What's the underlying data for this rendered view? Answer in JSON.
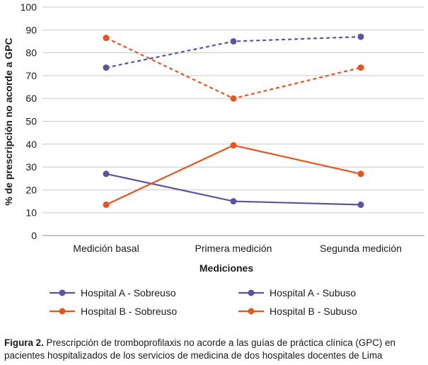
{
  "chart_data": {
    "type": "line",
    "title": "",
    "xlabel": "Mediciones",
    "ylabel": "% de prescripción no acorde a GPC",
    "ylim": [
      0,
      100
    ],
    "yticks": [
      "0",
      "10",
      "20",
      "30",
      "40",
      "50",
      "60",
      "70",
      "80",
      "90",
      "100"
    ],
    "categories": [
      "Medición basal",
      "Primera medición",
      "Segunda medición"
    ],
    "grid": true,
    "legend_position": "bottom",
    "series": [
      {
        "name": "Hospital A - Sobreuso",
        "values": [
          27,
          15,
          13.5
        ],
        "color": "#6050a0",
        "dash": "solid"
      },
      {
        "name": "Hospital A - Subuso",
        "values": [
          73.5,
          85,
          87
        ],
        "color": "#6050a0",
        "dash": "dashed"
      },
      {
        "name": "Hospital B - Sobreuso",
        "values": [
          13.5,
          39.5,
          27
        ],
        "color": "#e8531e",
        "dash": "solid"
      },
      {
        "name": "Hospital B - Subuso",
        "values": [
          86.5,
          60,
          73.5
        ],
        "color": "#e8531e",
        "dash": "dashed"
      }
    ]
  },
  "caption": {
    "label": "Figura 2.",
    "text": " Prescripción de tromboprofilaxis no acorde a las guías de práctica clínica (GPC) en pacientes hospitalizados de los servicios de medicina de dos hospitales docentes de Lima"
  }
}
